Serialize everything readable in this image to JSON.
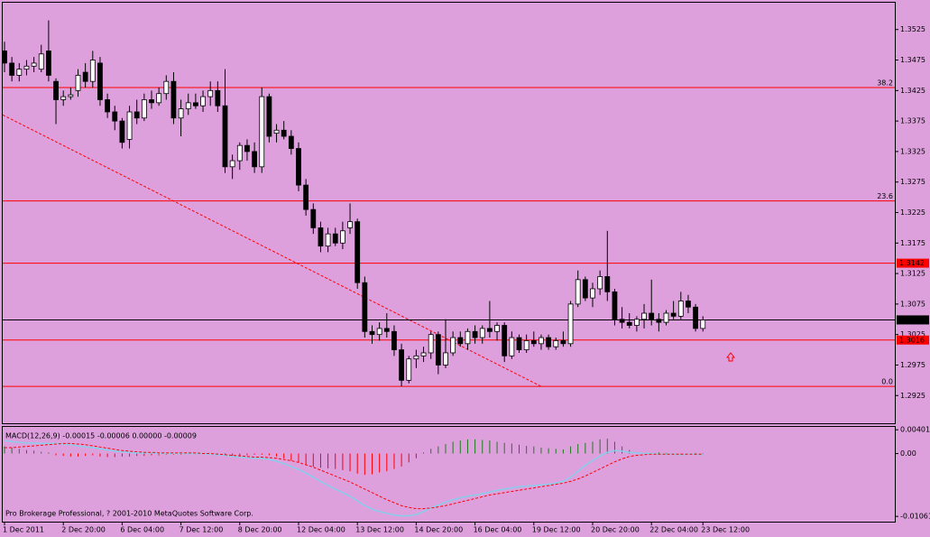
{
  "chart_data": {
    "type": "candlestick",
    "categories": [
      "1 Dec 2011",
      null,
      null,
      null,
      null,
      null,
      null,
      null,
      "2 Dec 20:00",
      null,
      null,
      null,
      null,
      null,
      null,
      null,
      "6 Dec 04:00",
      null,
      null,
      null,
      null,
      null,
      null,
      null,
      "7 Dec 12:00",
      null,
      null,
      null,
      null,
      null,
      null,
      null,
      "8 Dec 20:00",
      null,
      null,
      null,
      null,
      null,
      null,
      null,
      "12 Dec 04:00",
      null,
      null,
      null,
      null,
      null,
      null,
      null,
      "13 Dec 12:00",
      null,
      null,
      null,
      null,
      null,
      null,
      null,
      "14 Dec 20:00",
      null,
      null,
      null,
      null,
      null,
      null,
      null,
      "16 Dec 04:00",
      null,
      null,
      null,
      null,
      null,
      null,
      null,
      "19 Dec 12:00",
      null,
      null,
      null,
      null,
      null,
      null,
      null,
      "20 Dec 20:00",
      null,
      null,
      null,
      null,
      null,
      null,
      null,
      "22 Dec 04:00",
      null,
      null,
      null,
      null,
      null,
      null,
      "23 Dec 12:00"
    ],
    "ohlc": [
      [
        1.349,
        1.3505,
        1.3455,
        1.347
      ],
      [
        1.347,
        1.348,
        1.344,
        1.345
      ],
      [
        1.345,
        1.347,
        1.344,
        1.346
      ],
      [
        1.346,
        1.3475,
        1.345,
        1.3465
      ],
      [
        1.3465,
        1.348,
        1.3455,
        1.347
      ],
      [
        1.346,
        1.35,
        1.3455,
        1.3485
      ],
      [
        1.349,
        1.354,
        1.344,
        1.345
      ],
      [
        1.344,
        1.3445,
        1.337,
        1.341
      ],
      [
        1.341,
        1.3425,
        1.34,
        1.3415
      ],
      [
        1.3415,
        1.343,
        1.341,
        1.3418
      ],
      [
        1.3425,
        1.346,
        1.3415,
        1.345
      ],
      [
        1.3455,
        1.347,
        1.343,
        1.344
      ],
      [
        1.344,
        1.349,
        1.343,
        1.3475
      ],
      [
        1.347,
        1.348,
        1.34,
        1.341
      ],
      [
        1.341,
        1.342,
        1.338,
        1.339
      ],
      [
        1.339,
        1.34,
        1.336,
        1.3375
      ],
      [
        1.3375,
        1.338,
        1.333,
        1.334
      ],
      [
        1.3345,
        1.34,
        1.333,
        1.339
      ],
      [
        1.339,
        1.341,
        1.337,
        1.338
      ],
      [
        1.338,
        1.342,
        1.3375,
        1.341
      ],
      [
        1.341,
        1.3425,
        1.3395,
        1.3405
      ],
      [
        1.3405,
        1.343,
        1.34,
        1.342
      ],
      [
        1.342,
        1.345,
        1.341,
        1.344
      ],
      [
        1.344,
        1.3455,
        1.337,
        1.338
      ],
      [
        1.338,
        1.341,
        1.335,
        1.3395
      ],
      [
        1.3395,
        1.342,
        1.3385,
        1.3405
      ],
      [
        1.3405,
        1.342,
        1.3395,
        1.34
      ],
      [
        1.34,
        1.3425,
        1.339,
        1.3415
      ],
      [
        1.3415,
        1.344,
        1.34,
        1.3425
      ],
      [
        1.3425,
        1.344,
        1.339,
        1.34
      ],
      [
        1.34,
        1.346,
        1.329,
        1.33
      ],
      [
        1.33,
        1.332,
        1.328,
        1.331
      ],
      [
        1.331,
        1.334,
        1.3295,
        1.3335
      ],
      [
        1.3335,
        1.3345,
        1.331,
        1.3325
      ],
      [
        1.3325,
        1.334,
        1.329,
        1.33
      ],
      [
        1.33,
        1.343,
        1.329,
        1.3415
      ],
      [
        1.3415,
        1.342,
        1.334,
        1.335
      ],
      [
        1.3355,
        1.337,
        1.334,
        1.336
      ],
      [
        1.336,
        1.3375,
        1.3345,
        1.335
      ],
      [
        1.335,
        1.336,
        1.332,
        1.333
      ],
      [
        1.333,
        1.334,
        1.326,
        1.327
      ],
      [
        1.327,
        1.328,
        1.322,
        1.323
      ],
      [
        1.323,
        1.324,
        1.319,
        1.32
      ],
      [
        1.32,
        1.321,
        1.316,
        1.317
      ],
      [
        1.317,
        1.32,
        1.316,
        1.319
      ],
      [
        1.319,
        1.32,
        1.317,
        1.3175
      ],
      [
        1.3175,
        1.321,
        1.3165,
        1.3195
      ],
      [
        1.32,
        1.324,
        1.319,
        1.321
      ],
      [
        1.321,
        1.3215,
        1.31,
        1.311
      ],
      [
        1.311,
        1.312,
        1.302,
        1.303
      ],
      [
        1.303,
        1.304,
        1.301,
        1.3025
      ],
      [
        1.3025,
        1.3045,
        1.3015,
        1.3035
      ],
      [
        1.3035,
        1.306,
        1.302,
        1.303
      ],
      [
        1.303,
        1.304,
        1.299,
        1.3
      ],
      [
        1.3,
        1.301,
        1.294,
        1.295
      ],
      [
        1.295,
        1.299,
        1.2945,
        1.2985
      ],
      [
        1.2985,
        1.3,
        1.297,
        1.299
      ],
      [
        1.299,
        1.3005,
        1.298,
        1.2995
      ],
      [
        1.2995,
        1.303,
        1.2985,
        1.3025
      ],
      [
        1.3025,
        1.303,
        1.296,
        1.2975
      ],
      [
        1.2975,
        1.305,
        1.297,
        1.2995
      ],
      [
        1.2995,
        1.303,
        1.299,
        1.302
      ],
      [
        1.302,
        1.303,
        1.3005,
        1.301
      ],
      [
        1.301,
        1.3035,
        1.3,
        1.303
      ],
      [
        1.303,
        1.304,
        1.301,
        1.302
      ],
      [
        1.302,
        1.304,
        1.301,
        1.3035
      ],
      [
        1.3035,
        1.308,
        1.302,
        1.303
      ],
      [
        1.303,
        1.3045,
        1.3015,
        1.304
      ],
      [
        1.304,
        1.3045,
        1.298,
        1.299
      ],
      [
        1.299,
        1.303,
        1.2985,
        1.302
      ],
      [
        1.302,
        1.3025,
        1.2995,
        1.3
      ],
      [
        1.3,
        1.3025,
        1.2995,
        1.3015
      ],
      [
        1.3015,
        1.303,
        1.3005,
        1.301
      ],
      [
        1.301,
        1.3025,
        1.3,
        1.302
      ],
      [
        1.302,
        1.3025,
        1.3,
        1.3005
      ],
      [
        1.3005,
        1.302,
        1.3,
        1.3015
      ],
      [
        1.3015,
        1.303,
        1.3005,
        1.301
      ],
      [
        1.301,
        1.308,
        1.3005,
        1.3075
      ],
      [
        1.3075,
        1.313,
        1.307,
        1.3115
      ],
      [
        1.3115,
        1.312,
        1.308,
        1.3085
      ],
      [
        1.3085,
        1.311,
        1.307,
        1.31
      ],
      [
        1.31,
        1.313,
        1.309,
        1.312
      ],
      [
        1.312,
        1.3195,
        1.308,
        1.3095
      ],
      [
        1.3095,
        1.31,
        1.304,
        1.305
      ],
      [
        1.305,
        1.307,
        1.3035,
        1.3045
      ],
      [
        1.3045,
        1.306,
        1.3035,
        1.304
      ],
      [
        1.304,
        1.3055,
        1.303,
        1.305
      ],
      [
        1.305,
        1.3075,
        1.3035,
        1.306
      ],
      [
        1.306,
        1.3115,
        1.304,
        1.305
      ],
      [
        1.305,
        1.306,
        1.303,
        1.3045
      ],
      [
        1.3045,
        1.3065,
        1.304,
        1.306
      ],
      [
        1.306,
        1.308,
        1.305,
        1.3055
      ],
      [
        1.3055,
        1.3095,
        1.305,
        1.308
      ],
      [
        1.308,
        1.309,
        1.306,
        1.307
      ],
      [
        1.307,
        1.3075,
        1.303,
        1.3035
      ],
      [
        1.3035,
        1.3055,
        1.303,
        1.3049
      ]
    ],
    "ylim": [
      1.2881,
      1.3569
    ],
    "yticks": [
      1.3525,
      1.3475,
      1.3425,
      1.3375,
      1.3325,
      1.3275,
      1.3225,
      1.3175,
      1.3125,
      1.3075,
      1.3025,
      1.2975,
      1.2925
    ],
    "levels": [
      {
        "label": "38.2",
        "value": 1.343
      },
      {
        "label": "23.6",
        "value": 1.3244
      },
      {
        "label": "0.0",
        "value": 1.294
      }
    ],
    "price_lines": [
      {
        "value": 1.3142,
        "color": "#ff0000"
      },
      {
        "value": 1.3049,
        "color": "#000000"
      },
      {
        "value": 1.3016,
        "color": "#ff0000"
      }
    ],
    "trendline": {
      "x": [
        0,
        73
      ],
      "values": [
        1.3385,
        1.294
      ],
      "color": "#ff0000"
    },
    "macd": {
      "label": "MACD(12,26,9) -0.00015 -0.00006 0.00000 -0.00009",
      "ylim": [
        -0.0115,
        0.0045
      ],
      "yticks": [
        0.00401,
        {
          "value": 0,
          "label": "0.00"
        },
        -0.01061
      ],
      "histogram": [
        0.0012,
        0.001,
        0.0008,
        0.0006,
        0.0005,
        0.0003,
        0.0002,
        -0.0003,
        -0.0004,
        -0.0005,
        -0.0005,
        -0.0004,
        -0.0003,
        -0.0005,
        -0.0006,
        -0.0006,
        -0.0005,
        -0.0005,
        -0.0004,
        -0.0004,
        -0.0003,
        -0.0003,
        -0.0002,
        -0.0002,
        -0.0002,
        -0.0001,
        -0.0001,
        0,
        0,
        -0.0002,
        -0.0003,
        -0.0004,
        -0.0004,
        -0.0003,
        -0.0002,
        -0.0002,
        -0.0003,
        -0.0005,
        -0.0008,
        -0.0012,
        -0.0015,
        -0.0019,
        -0.0022,
        -0.0024,
        -0.0025,
        -0.0026,
        -0.0028,
        -0.003,
        -0.0034,
        -0.0036,
        -0.0035,
        -0.0032,
        -0.003,
        -0.0026,
        -0.0022,
        -0.0015,
        -0.0008,
        0.0002,
        0.0008,
        0.0012,
        0.0016,
        0.002,
        0.0022,
        0.0024,
        0.0024,
        0.0023,
        0.0022,
        0.002,
        0.0018,
        0.0017,
        0.0015,
        0.0013,
        0.0012,
        0.001,
        0.0009,
        0.0008,
        0.0007,
        0.0012,
        0.0016,
        0.0018,
        0.002,
        0.0024,
        0.0025,
        0.002,
        0.0012,
        0.0006,
        0.0002,
        0.0001,
        0.0001,
        0.0002,
        0.0001,
        0,
        -0.0001,
        0,
        0.0001,
        -0.0001
      ],
      "up_color": "#1f7a1f",
      "down_color": "#ff0000",
      "main": {
        "color": "#87ceeb",
        "values": [
          0.0022,
          0.002,
          0.0019,
          0.0018,
          0.0018,
          0.0017,
          0.0017,
          0.0017,
          0.0016,
          0.0015,
          0.0013,
          0.0011,
          0.001,
          0.0008,
          0.0006,
          0.0004,
          0.0003,
          0.0002,
          0.0001,
          0.0001,
          0.0001,
          0,
          0,
          0,
          0,
          0,
          0,
          0,
          -0.0001,
          -0.0002,
          -0.0003,
          -0.0005,
          -0.0006,
          -0.0007,
          -0.0008,
          -0.0008,
          -0.001,
          -0.0013,
          -0.0017,
          -0.0022,
          -0.0027,
          -0.0033,
          -0.004,
          -0.0047,
          -0.0054,
          -0.006,
          -0.0066,
          -0.0072,
          -0.008,
          -0.0088,
          -0.0094,
          -0.0098,
          -0.0101,
          -0.0104,
          -0.0105,
          -0.0105,
          -0.0103,
          -0.0098,
          -0.0092,
          -0.0087,
          -0.0082,
          -0.0078,
          -0.0075,
          -0.0072,
          -0.007,
          -0.0068,
          -0.0065,
          -0.0062,
          -0.006,
          -0.0058,
          -0.0056,
          -0.0055,
          -0.0054,
          -0.0053,
          -0.0052,
          -0.005,
          -0.0047,
          -0.004,
          -0.003,
          -0.002,
          -0.0012,
          -0.0004,
          0.0002,
          0.0005,
          0.0004,
          0.0002,
          0.0001,
          0,
          0,
          -0.0001,
          -0.0001,
          -0.0001,
          -0.0002,
          -0.0001,
          -0.0001,
          -0.0002
        ]
      },
      "signal": {
        "color": "#ff0000",
        "values": [
          0.001,
          0.001,
          0.0011,
          0.0012,
          0.0013,
          0.0014,
          0.0015,
          0.0016,
          0.0017,
          0.0017,
          0.0016,
          0.0015,
          0.0013,
          0.0011,
          0.0009,
          0.0007,
          0.0005,
          0.0004,
          0.0003,
          0.0002,
          0.0002,
          0.0001,
          0.0001,
          0.0001,
          0.0001,
          0.0001,
          0.0001,
          0,
          0,
          -0.0001,
          -0.0002,
          -0.0003,
          -0.0004,
          -0.0005,
          -0.0006,
          -0.0006,
          -0.0007,
          -0.0008,
          -0.001,
          -0.0012,
          -0.0015,
          -0.0019,
          -0.0023,
          -0.0028,
          -0.0033,
          -0.0038,
          -0.0043,
          -0.0048,
          -0.0054,
          -0.006,
          -0.0066,
          -0.0072,
          -0.0078,
          -0.0083,
          -0.0088,
          -0.0091,
          -0.0093,
          -0.0093,
          -0.0092,
          -0.009,
          -0.0088,
          -0.0085,
          -0.0082,
          -0.0079,
          -0.0076,
          -0.0073,
          -0.007,
          -0.0068,
          -0.0066,
          -0.0064,
          -0.0062,
          -0.006,
          -0.0058,
          -0.0056,
          -0.0054,
          -0.0052,
          -0.005,
          -0.0047,
          -0.0043,
          -0.0038,
          -0.0032,
          -0.0026,
          -0.002,
          -0.0014,
          -0.0009,
          -0.0005,
          -0.0003,
          -0.0002,
          -0.0001,
          -0.0001,
          -0.0001,
          -0.0001,
          -0.0001,
          -0.0001,
          -0.0001,
          -0.0001
        ]
      }
    },
    "footer": "Pro Brokerage Professional, ? 2001-2010 MetaQuotes Software Corp."
  }
}
